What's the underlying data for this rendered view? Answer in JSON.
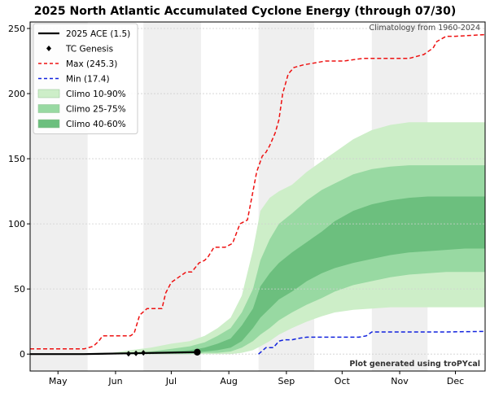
{
  "chart_data": {
    "type": "line",
    "title": "2025 North Atlantic Accumulated Cyclone Energy (through 07/30)",
    "climatology_note": "Climatology from 1960-2024",
    "credit": "Plot generated using troPYcal",
    "xlabel": "",
    "ylabel": "",
    "x_unit": "day of year",
    "xlim": [
      121,
      366
    ],
    "ylim": [
      -13,
      255
    ],
    "y_ticks": [
      0,
      50,
      100,
      150,
      200,
      250
    ],
    "month_ticks": [
      {
        "label": "May",
        "day": 136
      },
      {
        "label": "Jun",
        "day": 167
      },
      {
        "label": "Jul",
        "day": 197
      },
      {
        "label": "Aug",
        "day": 228
      },
      {
        "label": "Sep",
        "day": 259
      },
      {
        "label": "Oct",
        "day": 289
      },
      {
        "label": "Nov",
        "day": 320
      },
      {
        "label": "Dec",
        "day": 350
      }
    ],
    "shaded_months": [
      [
        121,
        152
      ],
      [
        182,
        213
      ],
      [
        244,
        274
      ],
      [
        305,
        335
      ]
    ],
    "grid": true,
    "legend_position": "top-left",
    "legend": [
      {
        "label": "2025 ACE (1.5)",
        "kind": "line",
        "color": "#000000"
      },
      {
        "label": "TC Genesis",
        "kind": "diamond",
        "color": "#000000"
      },
      {
        "label": "Max (245.3)",
        "kind": "dashed",
        "color": "#ee1111"
      },
      {
        "label": "Min (17.4)",
        "kind": "dashed",
        "color": "#1122dd"
      },
      {
        "label": "Climo 10-90%",
        "kind": "band",
        "color": "#cdeec8"
      },
      {
        "label": "Climo 25-75%",
        "kind": "band",
        "color": "#98d9a2"
      },
      {
        "label": "Climo 40-60%",
        "kind": "band",
        "color": "#6cbf7e"
      }
    ],
    "series": [
      {
        "name": "2025 ACE (1.5)",
        "color": "#000000",
        "x": [
          121,
          150,
          175,
          190,
          211
        ],
        "y": [
          0,
          0,
          0.6,
          1.0,
          1.5
        ]
      },
      {
        "name": "Max (245.3)",
        "color": "#ee1111",
        "x": [
          121,
          133,
          150,
          155,
          158,
          160,
          162,
          175,
          177,
          180,
          184,
          185,
          186,
          192,
          194,
          197,
          202,
          205,
          208,
          212,
          215,
          217,
          220,
          226,
          230,
          234,
          238,
          241,
          243,
          246,
          248,
          250,
          253,
          255,
          257,
          260,
          263,
          268,
          272,
          276,
          280,
          285,
          290,
          300,
          313,
          325,
          333,
          338,
          340,
          345,
          350,
          366
        ],
        "y": [
          4,
          4,
          4,
          6,
          10,
          14,
          14,
          14,
          16,
          30,
          35,
          35,
          35,
          35,
          47,
          55,
          60,
          63,
          63,
          70,
          72,
          75,
          82,
          82,
          85,
          100,
          103,
          125,
          140,
          152,
          155,
          160,
          170,
          180,
          200,
          215,
          220,
          222,
          223,
          224,
          225,
          225,
          225,
          227,
          227,
          227,
          230,
          235,
          240,
          244,
          244,
          245.3
        ]
      },
      {
        "name": "Min (17.4)",
        "color": "#1122dd",
        "x": [
          244,
          248,
          252,
          255,
          258,
          262,
          265,
          270,
          276,
          283,
          290,
          298,
          302,
          305,
          315,
          330,
          345,
          366
        ],
        "y": [
          0,
          5,
          5,
          10,
          11,
          11,
          12,
          13,
          13,
          13,
          13,
          13,
          14,
          17,
          17,
          17,
          17,
          17.4
        ]
      }
    ],
    "bands": [
      {
        "name": "Climo 10-90%",
        "color": "#cdeec8",
        "x": [
          121,
          165,
          175,
          186,
          197,
          207,
          215,
          222,
          229,
          235,
          241,
          245,
          250,
          255,
          262,
          270,
          278,
          285,
          295,
          305,
          315,
          325,
          335,
          345,
          355,
          366
        ],
        "lower": [
          0,
          0,
          0,
          0,
          0,
          0,
          0,
          0,
          0,
          1,
          3,
          6,
          10,
          15,
          20,
          25,
          29,
          32,
          34,
          35,
          36,
          36,
          36,
          36,
          36,
          36
        ],
        "upper": [
          0,
          1,
          3,
          5,
          8,
          10,
          14,
          20,
          28,
          45,
          80,
          110,
          120,
          125,
          130,
          140,
          148,
          155,
          165,
          172,
          176,
          178,
          178,
          178,
          178,
          178
        ]
      },
      {
        "name": "Climo 25-75%",
        "color": "#98d9a2",
        "x": [
          121,
          165,
          175,
          186,
          197,
          207,
          215,
          222,
          229,
          235,
          241,
          245,
          250,
          255,
          262,
          270,
          278,
          285,
          295,
          305,
          315,
          325,
          335,
          345,
          355,
          366
        ],
        "lower": [
          0,
          0,
          0,
          0,
          0,
          0,
          1,
          1,
          2,
          5,
          10,
          15,
          20,
          26,
          32,
          38,
          43,
          48,
          53,
          56,
          59,
          61,
          62,
          63,
          63,
          63
        ],
        "upper": [
          0,
          0,
          1,
          2,
          4,
          6,
          9,
          14,
          20,
          32,
          50,
          72,
          88,
          100,
          108,
          118,
          126,
          131,
          138,
          142,
          144,
          145,
          145,
          145,
          145,
          145
        ]
      },
      {
        "name": "Climo 40-60%",
        "color": "#6cbf7e",
        "x": [
          121,
          165,
          175,
          186,
          197,
          207,
          215,
          222,
          229,
          235,
          241,
          245,
          250,
          255,
          262,
          270,
          278,
          285,
          295,
          305,
          315,
          325,
          335,
          345,
          355,
          366
        ],
        "lower": [
          0,
          0,
          0,
          0,
          1,
          1,
          2,
          3,
          5,
          10,
          20,
          28,
          35,
          42,
          48,
          56,
          62,
          66,
          70,
          73,
          76,
          78,
          79,
          80,
          81,
          81
        ],
        "upper": [
          0,
          0,
          0,
          1,
          2,
          3,
          5,
          8,
          12,
          22,
          35,
          52,
          62,
          70,
          78,
          86,
          94,
          102,
          110,
          115,
          118,
          120,
          121,
          121,
          121,
          121
        ]
      }
    ],
    "genesis_points": {
      "x": [
        174,
        178,
        182
      ],
      "y": [
        0.3,
        0.6,
        1.0
      ]
    },
    "current_point": {
      "x": 211,
      "y": 1.5
    }
  }
}
